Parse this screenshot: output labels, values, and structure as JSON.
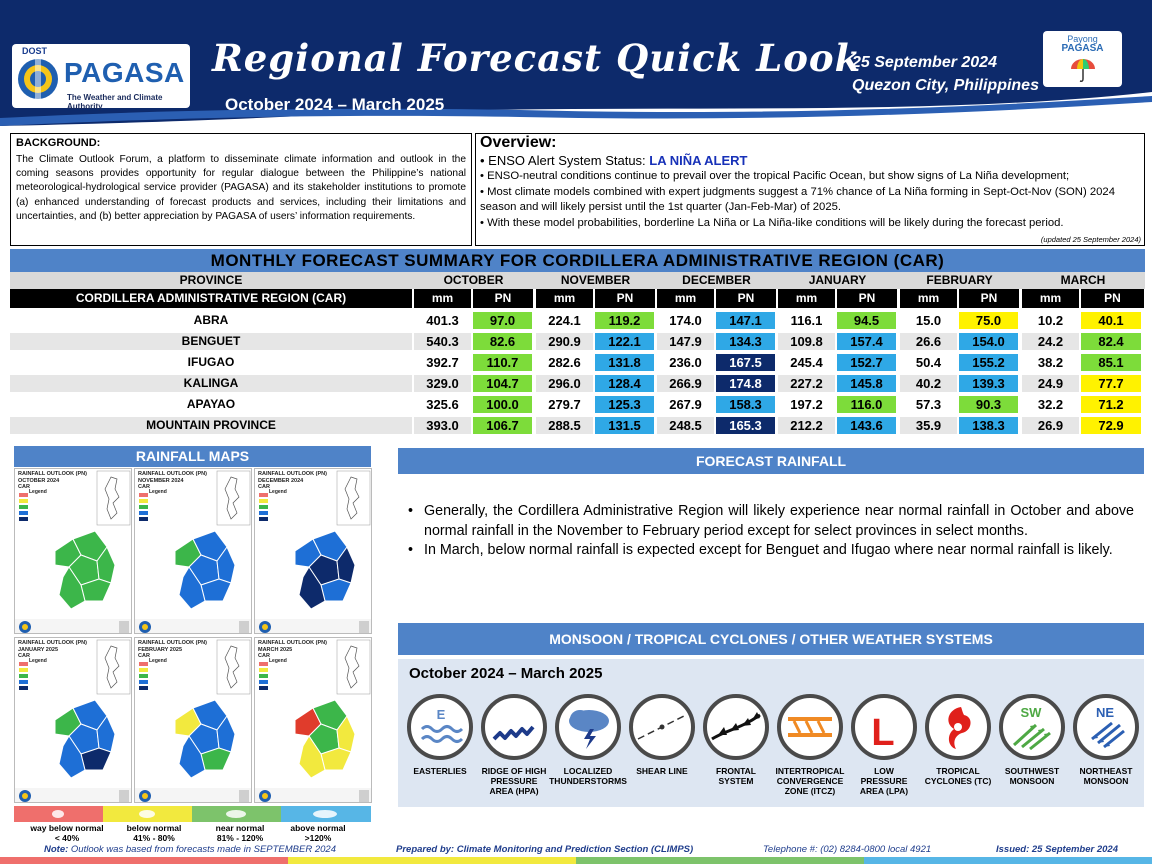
{
  "header": {
    "dost": "DOST",
    "agency": "PAGASA",
    "tagline": "The Weather and Climate Authority",
    "title": "Regional Forecast Quick Look",
    "period": "October 2024 – March 2025",
    "date": "25 September 2024",
    "place": "Quezon City, Philippines",
    "payong_line1": "Payong",
    "payong_line2": "PAGASA",
    "colors": {
      "navy": "#0d2a6b",
      "accent": "#4f83c8"
    }
  },
  "background": {
    "title": "BACKGROUND:",
    "text": "The Climate Outlook Forum, a platform to disseminate climate information and outlook in the coming seasons provides opportunity for regular dialogue between the Philippine’s national meteorological-hydrological service provider (PAGASA) and its stakeholder institutions to promote (a) enhanced understanding of forecast products and services, including their limitations and uncertainties, and (b) better appreciation by PAGASA of users’ information requirements."
  },
  "overview": {
    "title": "Overview:",
    "status_label": "• ENSO Alert System Status: ",
    "status_value": "LA NIÑA ALERT",
    "bullets": [
      "• ENSO-neutral conditions continue to prevail over the tropical Pacific Ocean, but show signs of La Niña development;",
      "• Most climate models combined with expert judgments suggest a 71% chance of La Niña forming in Sept-Oct-Nov (SON) 2024 season and will likely persist until the 1st quarter (Jan-Feb-Mar) of 2025.",
      "• With these model probabilities, borderline La Niña or La Niña-like conditions will be likely during the forecast period."
    ],
    "updated": "(updated 25 September 2024)"
  },
  "summary": {
    "title": "MONTHLY FORECAST SUMMARY FOR CORDILLERA ADMINISTRATIVE REGION (CAR)",
    "province_header": "PROVINCE",
    "region_label": "CORDILLERA ADMINISTRATIVE REGION (CAR)",
    "mm_label": "mm",
    "pn_label": "PN",
    "months": [
      "OCTOBER",
      "NOVEMBER",
      "DECEMBER",
      "JANUARY",
      "FEBRUARY",
      "MARCH"
    ],
    "rows": [
      {
        "province": "ABRA",
        "mm": [
          "401.3",
          "224.1",
          "174.0",
          "116.1",
          "15.0",
          "10.2"
        ],
        "pn": [
          "97.0",
          "119.2",
          "147.1",
          "94.5",
          "75.0",
          "40.1"
        ]
      },
      {
        "province": "BENGUET",
        "mm": [
          "540.3",
          "290.9",
          "147.9",
          "109.8",
          "26.6",
          "24.2"
        ],
        "pn": [
          "82.6",
          "122.1",
          "134.3",
          "157.4",
          "154.0",
          "82.4"
        ]
      },
      {
        "province": "IFUGAO",
        "mm": [
          "392.7",
          "282.6",
          "236.0",
          "245.4",
          "50.4",
          "38.2"
        ],
        "pn": [
          "110.7",
          "131.8",
          "167.5",
          "152.7",
          "155.2",
          "85.1"
        ]
      },
      {
        "province": "KALINGA",
        "mm": [
          "329.0",
          "296.0",
          "266.9",
          "227.2",
          "40.2",
          "24.9"
        ],
        "pn": [
          "104.7",
          "128.4",
          "174.8",
          "145.8",
          "139.3",
          "77.7"
        ]
      },
      {
        "province": "APAYAO",
        "mm": [
          "325.6",
          "279.7",
          "267.9",
          "197.2",
          "57.3",
          "32.2"
        ],
        "pn": [
          "100.0",
          "125.3",
          "158.3",
          "116.0",
          "90.3",
          "71.2"
        ]
      },
      {
        "province": "MOUNTAIN PROVINCE",
        "mm": [
          "393.0",
          "288.5",
          "248.5",
          "212.2",
          "35.9",
          "26.9"
        ],
        "pn": [
          "106.7",
          "131.5",
          "165.3",
          "143.6",
          "138.3",
          "72.9"
        ]
      }
    ]
  },
  "maps": {
    "title": "RAINFALL MAPS",
    "panels": [
      {
        "line1": "RAINFALL OUTLOOK (PN)",
        "line2": "OCTOBER 2024",
        "line3": "CAR"
      },
      {
        "line1": "RAINFALL OUTLOOK (PN)",
        "line2": "NOVEMBER 2024",
        "line3": "CAR"
      },
      {
        "line1": "RAINFALL OUTLOOK (PN)",
        "line2": "DECEMBER 2024",
        "line3": "CAR"
      },
      {
        "line1": "RAINFALL OUTLOOK (PN)",
        "line2": "JANUARY 2025",
        "line3": "CAR"
      },
      {
        "line1": "RAINFALL OUTLOOK (PN)",
        "line2": "FEBRUARY 2025",
        "line3": "CAR"
      },
      {
        "line1": "RAINFALL OUTLOOK (PN)",
        "line2": "MARCH 2025",
        "line3": "CAR"
      }
    ],
    "legend_word": "Legend",
    "legend": [
      {
        "l1": "way below normal",
        "l2": "< 40%",
        "color": "#ef6f6c"
      },
      {
        "l1": "below normal",
        "l2": "41% - 80%",
        "color": "#f2e93e"
      },
      {
        "l1": "near normal",
        "l2": "81% - 120%",
        "color": "#7dc36b"
      },
      {
        "l1": "above normal",
        "l2": ">120%",
        "color": "#57b6e6"
      }
    ]
  },
  "forecast": {
    "title": "FORECAST RAINFALL",
    "bullets": [
      "Generally, the Cordillera Administrative Region will likely experience near normal rainfall in October and above normal rainfall in the November to February period except for select provinces in select months.",
      "In March, below normal rainfall is expected except for Benguet and Ifugao where near normal rainfall is likely."
    ]
  },
  "systems": {
    "title": "MONSOON / TROPICAL CYCLONES / OTHER WEATHER SYSTEMS",
    "period": "October 2024 – March 2025",
    "items": [
      {
        "l1": "EASTERLIES",
        "l2": "",
        "l3": "",
        "icon": "easterlies-icon",
        "code": "E"
      },
      {
        "l1": "RIDGE OF HIGH",
        "l2": "PRESSURE",
        "l3": "AREA (HPA)",
        "icon": "ridge-icon"
      },
      {
        "l1": "LOCALIZED",
        "l2": "THUNDERSTORMS",
        "l3": "",
        "icon": "thunderstorm-icon"
      },
      {
        "l1": "SHEAR LINE",
        "l2": "",
        "l3": "",
        "icon": "shear-line-icon"
      },
      {
        "l1": "FRONTAL",
        "l2": "SYSTEM",
        "l3": "",
        "icon": "frontal-system-icon"
      },
      {
        "l1": "INTERTROPICAL",
        "l2": "CONVERGENCE",
        "l3": "ZONE (ITCZ)",
        "icon": "itcz-icon"
      },
      {
        "l1": "LOW",
        "l2": "PRESSURE",
        "l3": "AREA (LPA)",
        "icon": "lpa-icon",
        "code": "L"
      },
      {
        "l1": "TROPICAL",
        "l2": "CYCLONES (TC)",
        "l3": "",
        "icon": "tropical-cyclone-icon"
      },
      {
        "l1": "SOUTHWEST",
        "l2": "MONSOON",
        "l3": "",
        "icon": "southwest-monsoon-icon",
        "code": "SW"
      },
      {
        "l1": "NORTHEAST",
        "l2": "MONSOON",
        "l3": "",
        "icon": "northeast-monsoon-icon",
        "code": "NE"
      }
    ]
  },
  "footer": {
    "note_label": "Note:",
    "note": " Outlook was based from forecasts made in SEPTEMBER 2024",
    "prepared": "Prepared by: Climate Monitoring and Prediction Section (CLIMPS)",
    "telephone": "Telephone #: (02) 8284-0800 local 4921",
    "issued": "Issued: 25 September 2024"
  }
}
